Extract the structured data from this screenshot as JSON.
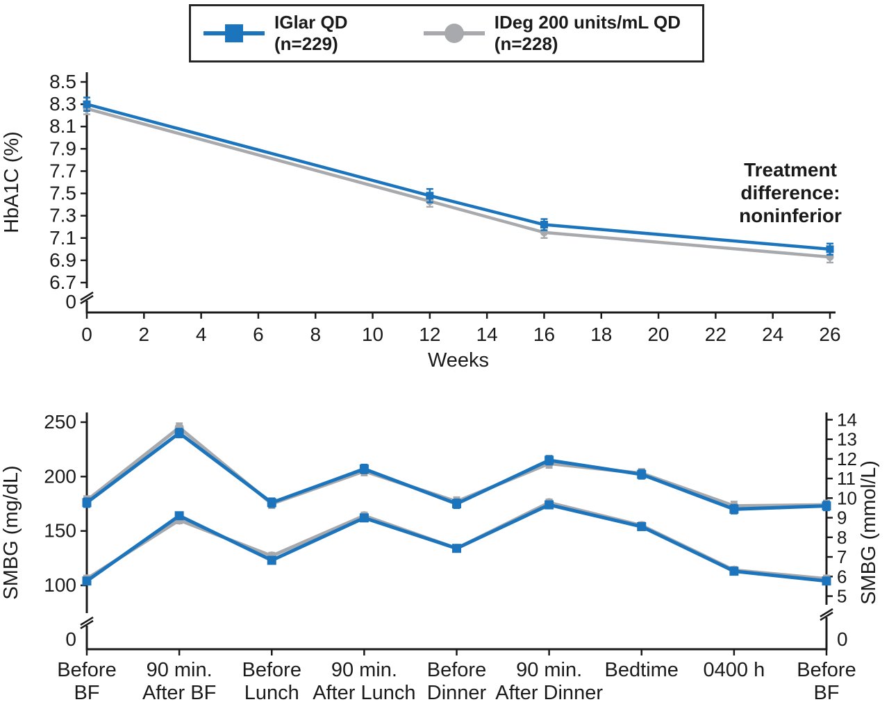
{
  "figure": {
    "legend": {
      "items": [
        {
          "name": "IGlar QD",
          "n": "(n=229)",
          "color": "#1c75bc",
          "marker": "square"
        },
        {
          "name": "IDeg 200 units/mL QD",
          "n": "(n=228)",
          "color": "#a7a9ac",
          "marker": "circle"
        }
      ]
    }
  },
  "chart_data": [
    {
      "type": "line",
      "xlabel": "Weeks",
      "ylabel": "HbA1C (%)",
      "xlim": [
        0,
        26
      ],
      "ylim": [
        6.7,
        8.5
      ],
      "x_ticks": [
        0,
        2,
        4,
        6,
        8,
        10,
        12,
        14,
        16,
        18,
        20,
        22,
        24,
        26
      ],
      "y_ticks": [
        8.5,
        8.3,
        8.1,
        7.9,
        7.7,
        7.5,
        7.3,
        7.1,
        6.9,
        6.7
      ],
      "y_axis_break_label": "0",
      "annotation": [
        "Treatment",
        "difference:",
        "noninferior"
      ],
      "series": [
        {
          "name": "IGlar QD (n=229)",
          "color": "#1c75bc",
          "marker": "square",
          "x": [
            0,
            12,
            16,
            26
          ],
          "y": [
            8.3,
            7.48,
            7.22,
            7.0
          ],
          "err": [
            0.06,
            0.06,
            0.05,
            0.05
          ]
        },
        {
          "name": "IDeg 200 units/mL QD (n=228)",
          "color": "#a7a9ac",
          "marker": "circle",
          "x": [
            0,
            12,
            16,
            26
          ],
          "y": [
            8.26,
            7.43,
            7.15,
            6.93
          ],
          "err": [
            0.05,
            0.05,
            0.05,
            0.05
          ]
        }
      ]
    },
    {
      "type": "line",
      "ylabel_left": "SMBG (mg/dL)",
      "ylabel_right": "SMBG (mmol/L)",
      "categories": [
        [
          "Before",
          "BF"
        ],
        [
          "90 min.",
          "After BF"
        ],
        [
          "Before",
          "Lunch"
        ],
        [
          "90 min.",
          "After Lunch"
        ],
        [
          "Before",
          "Dinner"
        ],
        [
          "90 min.",
          "After Dinner"
        ],
        [
          "Bedtime"
        ],
        [
          "0400 h"
        ],
        [
          "Before",
          "BF"
        ]
      ],
      "left_ticks": [
        250,
        200,
        150,
        100
      ],
      "left_axis_break_label": "0",
      "right_ticks": [
        14,
        13,
        12,
        11,
        10,
        9,
        8,
        7,
        6,
        5
      ],
      "right_axis_break_label": "0",
      "mgdl_per_mmol": 18.02,
      "series": [
        {
          "name": "IGlar QD (n=229) upper profile",
          "color": "#1c75bc",
          "marker": "square",
          "values": [
            176,
            240,
            176,
            207,
            175,
            215,
            202,
            170,
            173
          ],
          "err": 4
        },
        {
          "name": "IDeg 200 units/mL QD (n=228) upper profile",
          "color": "#a7a9ac",
          "marker": "circle",
          "values": [
            178,
            245,
            175,
            205,
            177,
            212,
            203,
            173,
            174
          ],
          "err": 4
        },
        {
          "name": "IGlar QD (n=229) lower profile",
          "color": "#1c75bc",
          "marker": "square",
          "values": [
            104,
            164,
            123,
            162,
            134,
            174,
            154,
            113,
            104
          ],
          "err": 3
        },
        {
          "name": "IDeg 200 units/mL QD (n=228) lower profile",
          "color": "#a7a9ac",
          "marker": "circle",
          "values": [
            106,
            160,
            127,
            164,
            134,
            176,
            155,
            114,
            106
          ],
          "err": 3
        }
      ]
    }
  ]
}
